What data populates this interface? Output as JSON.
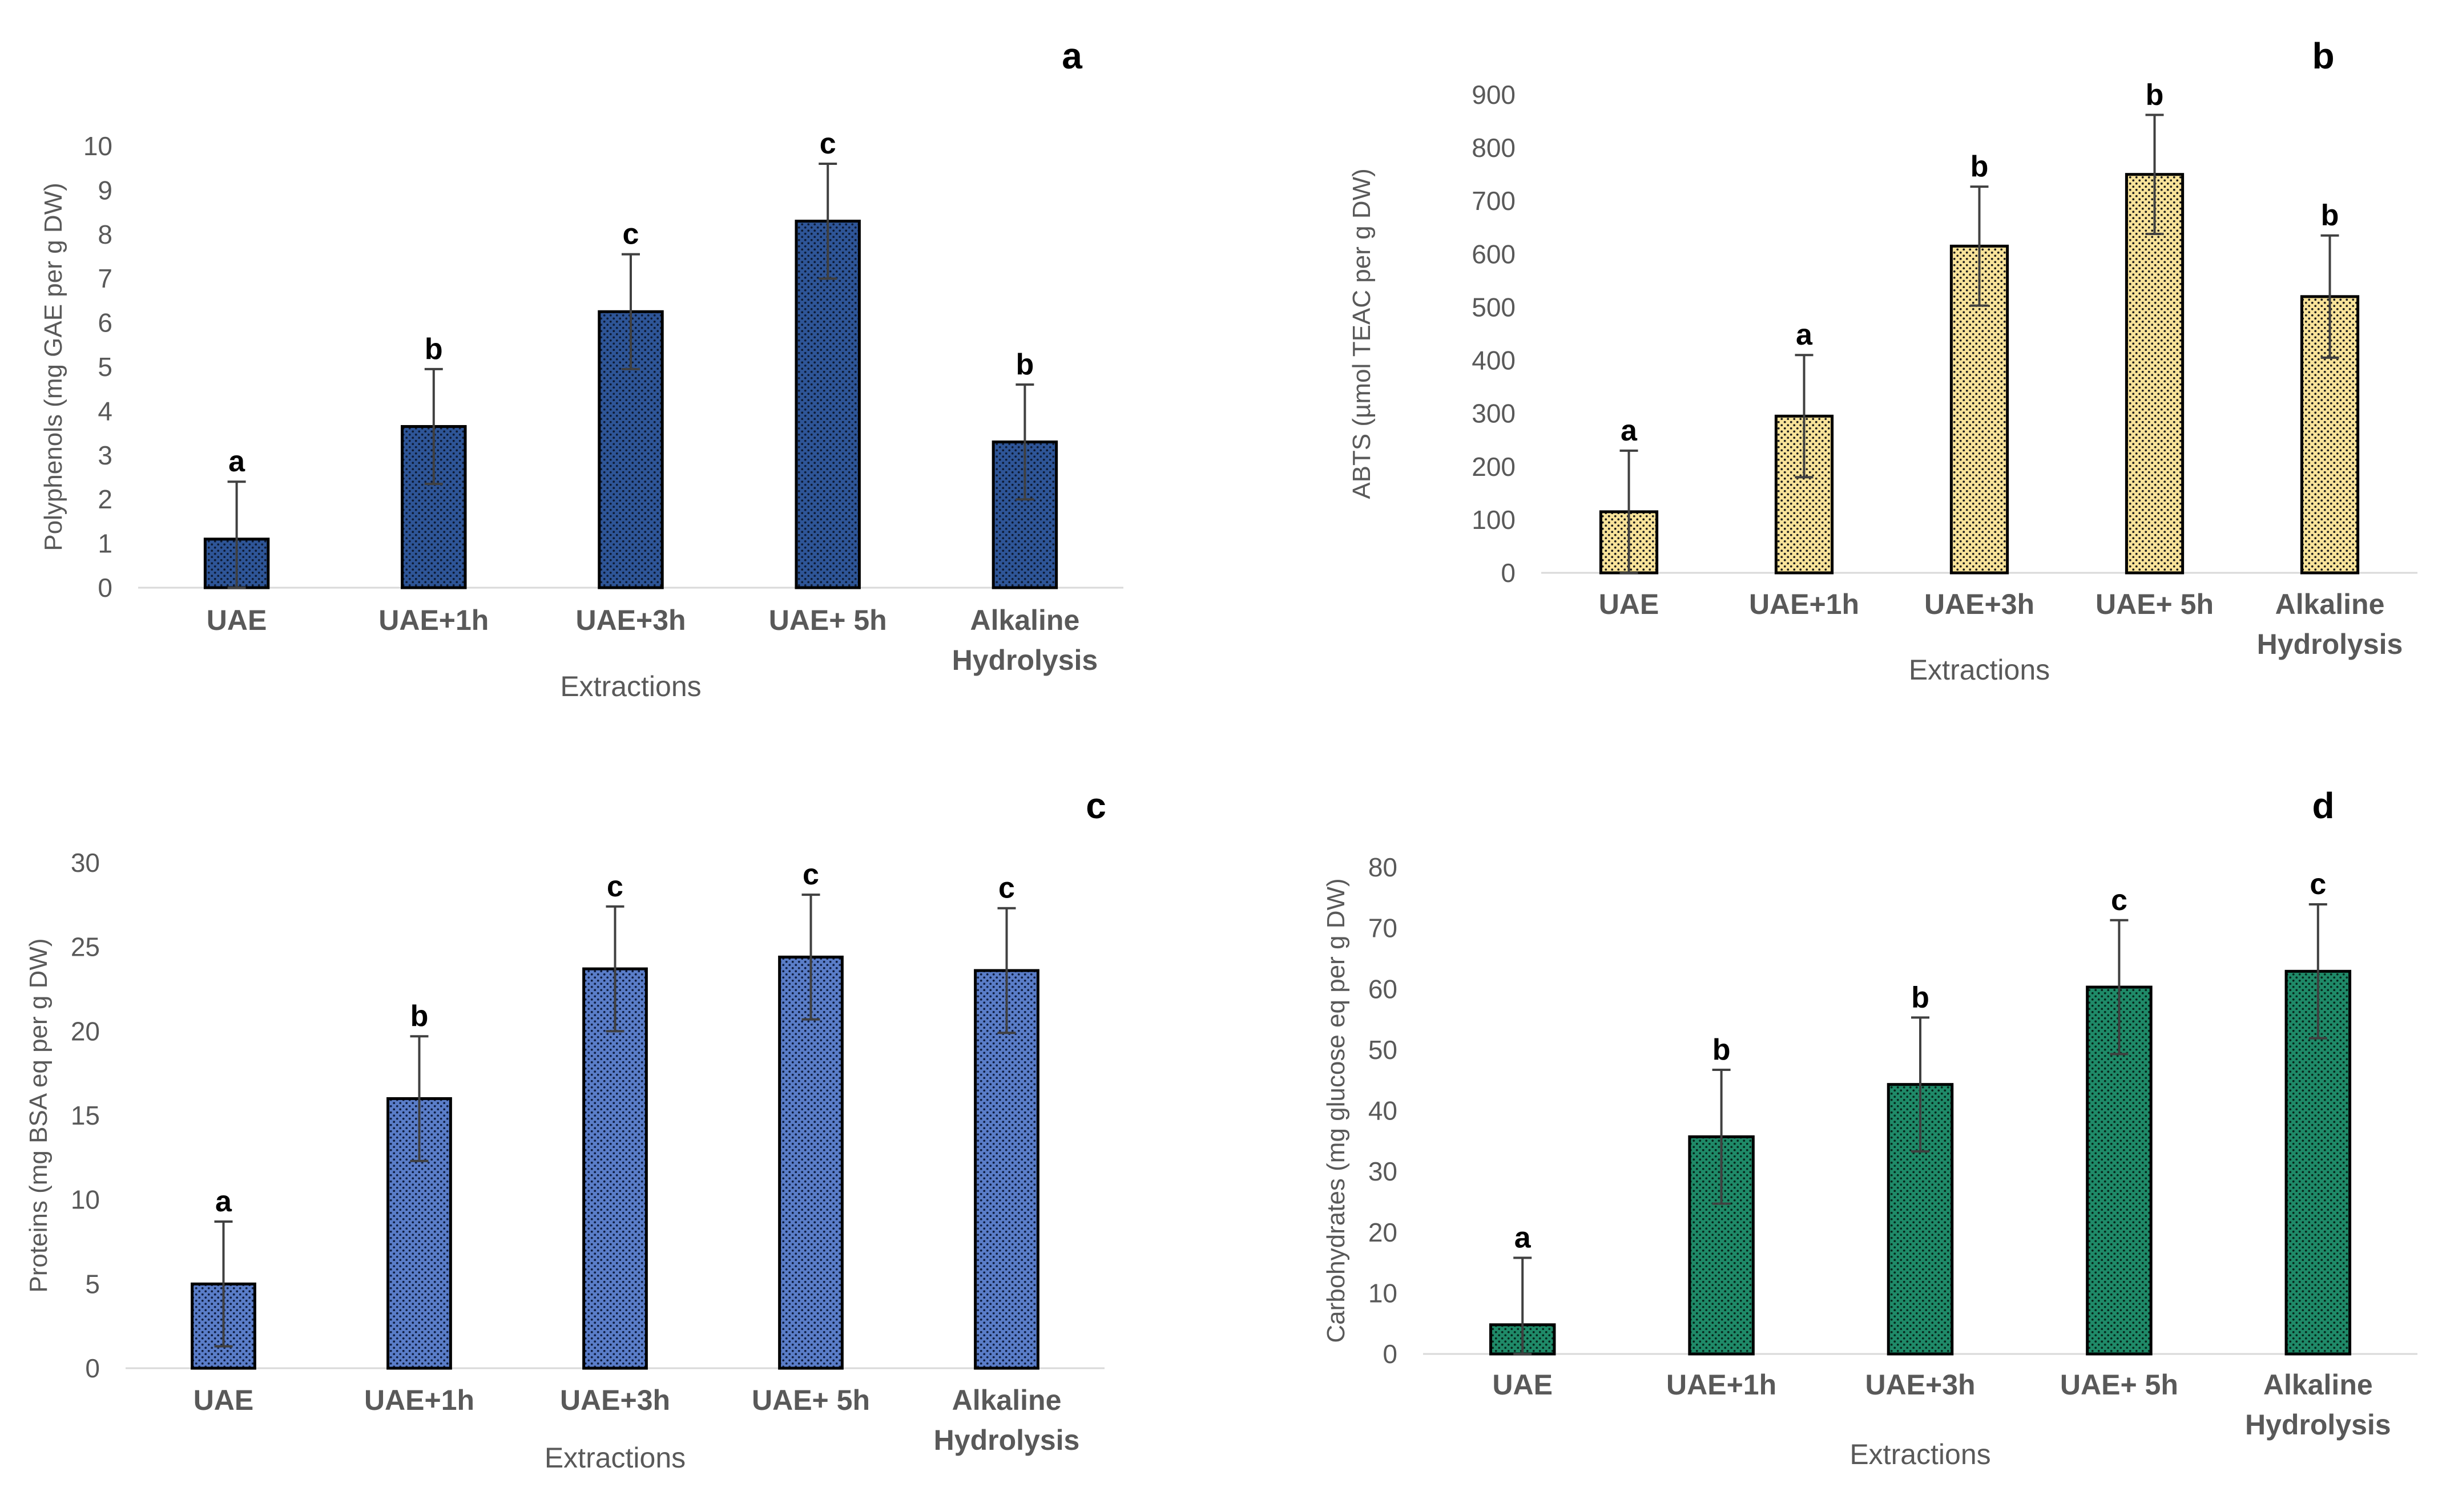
{
  "chart_data": [
    {
      "panel": "a",
      "type": "bar",
      "title": "",
      "xlabel": "Extractions",
      "ylabel": "Polyphenols (mg GAE per g DW)",
      "categories": [
        "UAE",
        "UAE+1h",
        "UAE+3h",
        "UAE+ 5h",
        "Alkaline Hydrolysis"
      ],
      "values": [
        1.1,
        3.65,
        6.25,
        8.3,
        3.3
      ],
      "errors": [
        1.3,
        1.3,
        1.3,
        1.3,
        1.3
      ],
      "letters": [
        "a",
        "b",
        "c",
        "c",
        "b"
      ],
      "ylim": [
        0,
        10
      ],
      "yticks": [
        0,
        1,
        2,
        3,
        4,
        5,
        6,
        7,
        8,
        9,
        10
      ],
      "color": "#2e5597",
      "dot_color": "#0d1a33"
    },
    {
      "panel": "b",
      "type": "bar",
      "title": "",
      "xlabel": "Extractions",
      "ylabel": "ABTS (µmol TEAC per g DW)",
      "categories": [
        "UAE",
        "UAE+1h",
        "UAE+3h",
        "UAE+ 5h",
        "Alkaline Hydrolysis"
      ],
      "values": [
        115,
        295,
        615,
        750,
        520
      ],
      "errors": [
        115,
        115,
        112,
        112,
        115
      ],
      "letters": [
        "a",
        "a",
        "b",
        "b",
        "b"
      ],
      "ylim": [
        0,
        900
      ],
      "yticks": [
        0,
        100,
        200,
        300,
        400,
        500,
        600,
        700,
        800,
        900
      ],
      "color": "#f8e39a",
      "dot_color": "#1a1a1a"
    },
    {
      "panel": "c",
      "type": "bar",
      "title": "",
      "xlabel": "Extractions",
      "ylabel": "Proteins (mg BSA eq per g DW)",
      "categories": [
        "UAE",
        "UAE+1h",
        "UAE+3h",
        "UAE+ 5h",
        "Alkaline Hydrolysis"
      ],
      "values": [
        5.0,
        16.0,
        23.7,
        24.4,
        23.6
      ],
      "errors": [
        3.7,
        3.7,
        3.7,
        3.7,
        3.7
      ],
      "letters": [
        "a",
        "b",
        "c",
        "c",
        "c"
      ],
      "ylim": [
        0,
        30
      ],
      "yticks": [
        0,
        5,
        10,
        15,
        20,
        25,
        30
      ],
      "color": "#5a7dc8",
      "dot_color": "#0f1d40"
    },
    {
      "panel": "d",
      "type": "bar",
      "title": "",
      "xlabel": "Extractions",
      "ylabel": "Carbohydrates (mg glucose eq per g DW)",
      "categories": [
        "UAE",
        "UAE+1h",
        "UAE+3h",
        "UAE+ 5h",
        "Alkaline Hydrolysis"
      ],
      "values": [
        4.8,
        35.7,
        44.3,
        60.3,
        62.9
      ],
      "errors": [
        11,
        11,
        11,
        11,
        11
      ],
      "letters": [
        "a",
        "b",
        "b",
        "c",
        "c"
      ],
      "ylim": [
        0,
        80
      ],
      "yticks": [
        0,
        10,
        20,
        30,
        40,
        50,
        60,
        70,
        80
      ],
      "color": "#1f8a68",
      "dot_color": "#06261b"
    }
  ]
}
